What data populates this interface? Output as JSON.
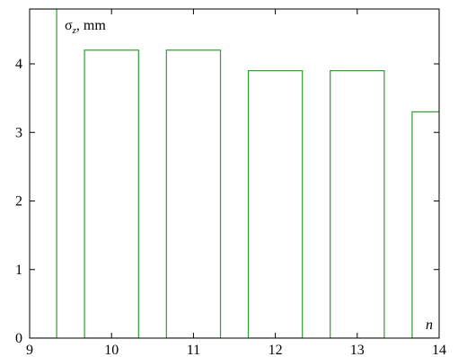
{
  "chart_data": {
    "type": "bar",
    "ylabel_symbol": "σ",
    "ylabel_subscript": "z",
    "ylabel_unit": ", mm",
    "xlabel": "n",
    "xlim": [
      9,
      14
    ],
    "ylim": [
      0,
      4.8
    ],
    "xticks": [
      "9",
      "10",
      "11",
      "12",
      "13",
      "14"
    ],
    "yticks": [
      "0",
      "1",
      "2",
      "3",
      "4"
    ],
    "bars": [
      {
        "x_start": 8.67,
        "x_end": 9.33,
        "value": 4.8
      },
      {
        "x_start": 9.67,
        "x_end": 10.33,
        "value": 4.2
      },
      {
        "x_start": 10.67,
        "x_end": 11.33,
        "value": 4.2
      },
      {
        "x_start": 11.67,
        "x_end": 12.33,
        "value": 3.9
      },
      {
        "x_start": 12.67,
        "x_end": 13.33,
        "value": 3.9
      },
      {
        "x_start": 13.67,
        "x_end": 14.33,
        "value": 3.3
      }
    ],
    "bar_color": "#2e9e2e",
    "grid": false
  }
}
